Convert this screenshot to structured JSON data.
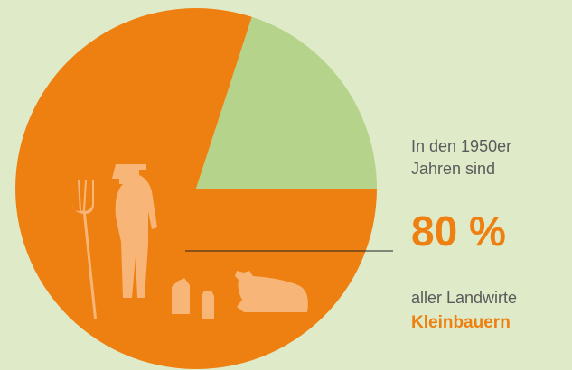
{
  "chart_data": {
    "type": "pie",
    "values": [
      80,
      20
    ],
    "value_labels": [
      "80 %",
      null
    ],
    "colors": [
      "#ee8012",
      "#b5d38a"
    ],
    "annotations": [
      "In den 1950er",
      "Jahren sind",
      "aller Landwirte",
      "Kleinbauern"
    ]
  }
}
